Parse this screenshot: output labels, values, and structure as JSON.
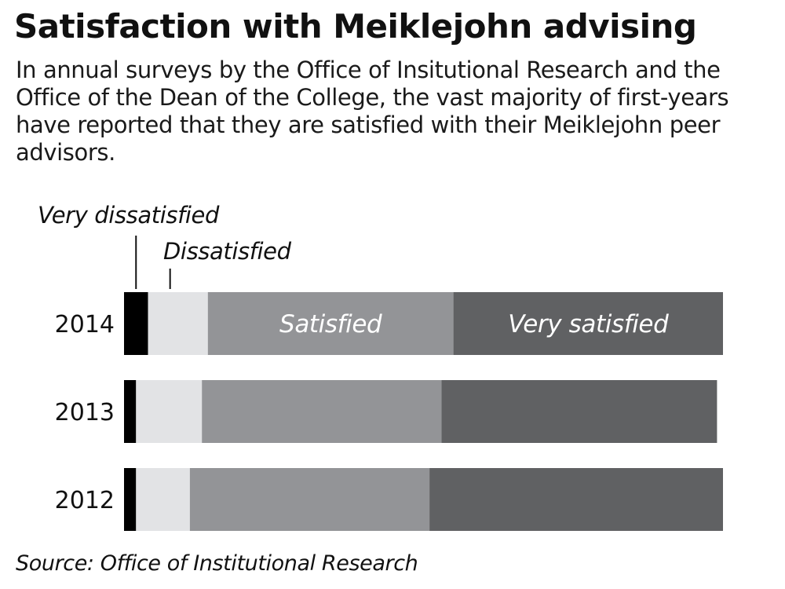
{
  "title": "Satisfaction with Meiklejohn advising",
  "subtitle": "In annual surveys by the Office of Insitutional Research and the Office of the Dean of the College, the vast majority of first-years have reported that they are satisfied with their Meiklejohn peer advisors.",
  "source": "Source: Office of Institutional Research",
  "chart_data": {
    "type": "bar",
    "orientation": "horizontal",
    "stacked": true,
    "unit": "percent",
    "categories": [
      "2014",
      "2013",
      "2012"
    ],
    "series": [
      {
        "name": "Very dissatisfied",
        "values": [
          4,
          2,
          2
        ],
        "color": "#000000"
      },
      {
        "name": "Dissatisfied",
        "values": [
          10,
          11,
          9
        ],
        "color": "#e2e3e5"
      },
      {
        "name": "Satisfied",
        "values": [
          41,
          40,
          40
        ],
        "color": "#939497"
      },
      {
        "name": "Very satisfied",
        "values": [
          45,
          46,
          49
        ],
        "color": "#606163"
      }
    ],
    "xlim": [
      0,
      100
    ],
    "grid": false
  }
}
